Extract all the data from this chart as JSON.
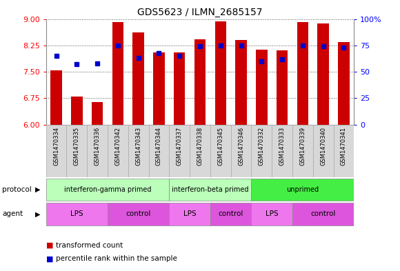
{
  "title": "GDS5623 / ILMN_2685157",
  "samples": [
    "GSM1470334",
    "GSM1470335",
    "GSM1470336",
    "GSM1470342",
    "GSM1470343",
    "GSM1470344",
    "GSM1470337",
    "GSM1470338",
    "GSM1470345",
    "GSM1470346",
    "GSM1470332",
    "GSM1470333",
    "GSM1470339",
    "GSM1470340",
    "GSM1470341"
  ],
  "transformed_count": [
    7.55,
    6.8,
    6.65,
    8.92,
    8.62,
    8.05,
    8.05,
    8.42,
    8.93,
    8.4,
    8.12,
    8.1,
    8.92,
    8.88,
    8.35
  ],
  "percentile_rank": [
    65,
    57,
    58,
    75,
    63,
    68,
    65,
    74,
    75,
    75,
    60,
    62,
    75,
    74,
    73
  ],
  "bar_color": "#cc0000",
  "dot_color": "#0000cc",
  "ylim_left": [
    6,
    9
  ],
  "ylim_right": [
    0,
    100
  ],
  "yticks_left": [
    6,
    6.75,
    7.5,
    8.25,
    9
  ],
  "yticks_right": [
    0,
    25,
    50,
    75,
    100
  ],
  "ytick_labels_right": [
    "0",
    "25",
    "50",
    "75",
    "100%"
  ],
  "protocol_groups": [
    {
      "label": "interferon-gamma primed",
      "start": 0,
      "end": 6,
      "color": "#bbffbb"
    },
    {
      "label": "interferon-beta primed",
      "start": 6,
      "end": 10,
      "color": "#bbffbb"
    },
    {
      "label": "unprimed",
      "start": 10,
      "end": 15,
      "color": "#44ee44"
    }
  ],
  "agent_groups": [
    {
      "label": "LPS",
      "start": 0,
      "end": 3,
      "color": "#ee77ee"
    },
    {
      "label": "control",
      "start": 3,
      "end": 6,
      "color": "#dd55dd"
    },
    {
      "label": "LPS",
      "start": 6,
      "end": 8,
      "color": "#ee77ee"
    },
    {
      "label": "control",
      "start": 8,
      "end": 10,
      "color": "#dd55dd"
    },
    {
      "label": "LPS",
      "start": 10,
      "end": 12,
      "color": "#ee77ee"
    },
    {
      "label": "control",
      "start": 12,
      "end": 15,
      "color": "#dd55dd"
    }
  ],
  "protocol_label": "protocol",
  "agent_label": "agent",
  "legend_bar_label": "transformed count",
  "legend_dot_label": "percentile rank within the sample",
  "background_color": "#ffffff",
  "plot_bg_color": "#ffffff",
  "grid_color": "#555555",
  "sample_bg_color": "#d8d8d8",
  "sample_border_color": "#aaaaaa"
}
